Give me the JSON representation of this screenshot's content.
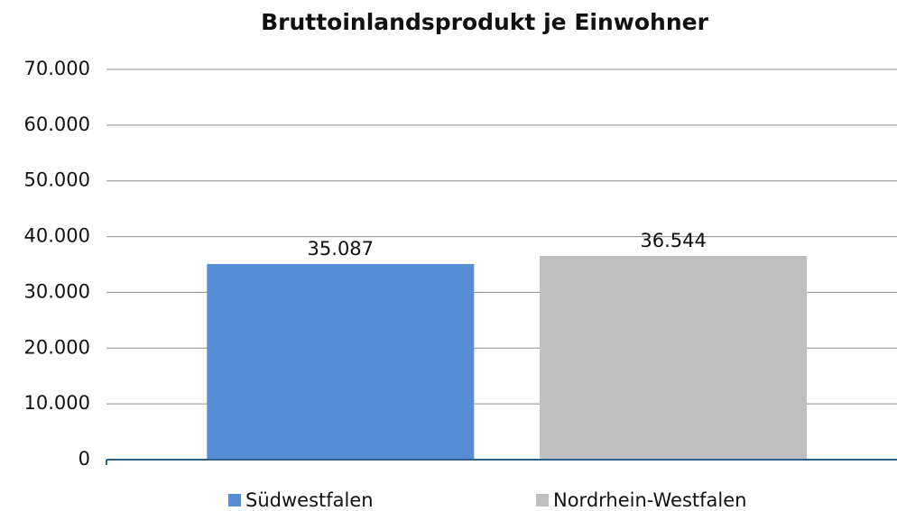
{
  "chart_data": {
    "type": "bar",
    "title": "Bruttoinlandsprodukt je Einwohner",
    "series": [
      {
        "name": "Südwestfalen",
        "color": "#558ed5",
        "values": [
          35087
        ],
        "value_labels": [
          "35.087"
        ]
      },
      {
        "name": "Nordrhein-Westfalen",
        "color": "#bfbfbf",
        "values": [
          36544
        ],
        "value_labels": [
          "36.544"
        ]
      }
    ],
    "ylim": [
      0,
      70000
    ],
    "yticks": [
      0,
      {
        "value": 10000,
        "label": "10.000"
      },
      {
        "value": 20000,
        "label": "20.000"
      },
      {
        "value": 30000,
        "label": "30.000"
      },
      {
        "value": 40000,
        "label": "40.000"
      },
      {
        "value": 50000,
        "label": "50.000"
      },
      {
        "value": 60000,
        "label": "60.000"
      },
      {
        "value": 70000,
        "label": "70.000"
      }
    ],
    "grid": true,
    "legend": "bottom"
  }
}
